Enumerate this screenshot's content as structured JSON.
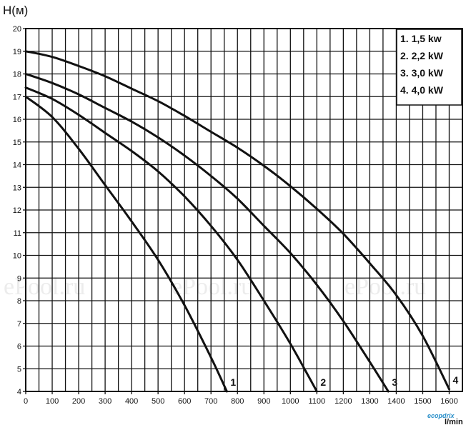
{
  "chart_data": {
    "type": "line",
    "ylabel": "H(м)",
    "xlabel": "l/min",
    "xlim": [
      0,
      1650
    ],
    "ylim": [
      4,
      20
    ],
    "x_ticks": [
      0,
      100,
      200,
      300,
      400,
      500,
      600,
      700,
      800,
      900,
      1000,
      1100,
      1200,
      1300,
      1400,
      1500,
      1600
    ],
    "y_ticks": [
      4,
      5,
      6,
      7,
      8,
      9,
      10,
      11,
      12,
      13,
      14,
      15,
      16,
      17,
      18,
      19,
      20
    ],
    "grid": true,
    "legend_position": "top-right",
    "legend": [
      "1. 1,5 kw",
      "2. 2,2 kW",
      "3. 3,0 kW",
      "4. 4,0 kW"
    ],
    "series": [
      {
        "name": "1",
        "x": [
          0,
          100,
          200,
          300,
          400,
          500,
          600,
          700,
          760
        ],
        "values": [
          17.0,
          16.1,
          14.7,
          13.1,
          11.5,
          9.8,
          7.8,
          5.5,
          4.0
        ]
      },
      {
        "name": "2",
        "x": [
          0,
          100,
          200,
          300,
          400,
          500,
          600,
          700,
          800,
          900,
          1000,
          1100
        ],
        "values": [
          17.4,
          16.9,
          16.2,
          15.4,
          14.6,
          13.7,
          12.6,
          11.3,
          9.8,
          8.0,
          6.1,
          4.0
        ]
      },
      {
        "name": "3",
        "x": [
          0,
          100,
          200,
          300,
          400,
          500,
          600,
          700,
          800,
          900,
          1000,
          1100,
          1200,
          1300,
          1370
        ],
        "values": [
          18.0,
          17.6,
          17.1,
          16.5,
          15.9,
          15.2,
          14.4,
          13.5,
          12.5,
          11.3,
          10.1,
          8.7,
          7.1,
          5.3,
          4.0
        ]
      },
      {
        "name": "4",
        "x": [
          0,
          100,
          200,
          300,
          400,
          500,
          600,
          700,
          800,
          900,
          1000,
          1100,
          1200,
          1300,
          1400,
          1500,
          1600
        ],
        "values": [
          19.0,
          18.75,
          18.35,
          17.9,
          17.35,
          16.8,
          16.15,
          15.45,
          14.75,
          13.95,
          13.05,
          12.05,
          10.95,
          9.65,
          8.25,
          6.45,
          4.1
        ]
      }
    ]
  },
  "watermark": "ePool.ru",
  "brand": "ecopdrix"
}
